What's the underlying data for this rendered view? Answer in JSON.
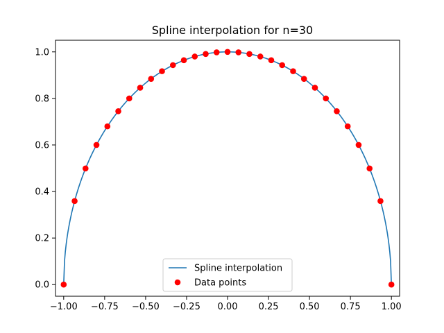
{
  "chart_data": {
    "type": "line",
    "title": "Spline interpolation for n=30",
    "xlabel": "",
    "ylabel": "",
    "xlim": [
      -1.05,
      1.05
    ],
    "ylim": [
      -0.05,
      1.05
    ],
    "grid": false,
    "legend_position": "lower center",
    "x_ticks": [
      -1.0,
      -0.75,
      -0.5,
      -0.25,
      0.0,
      0.25,
      0.5,
      0.75,
      1.0
    ],
    "x_tick_labels": [
      "−1.00",
      "−0.75",
      "−0.50",
      "−0.25",
      "0.00",
      "0.25",
      "0.50",
      "0.75",
      "1.00"
    ],
    "y_ticks": [
      0.0,
      0.2,
      0.4,
      0.6,
      0.8,
      1.0
    ],
    "y_tick_labels": [
      "0.0",
      "0.2",
      "0.4",
      "0.6",
      "0.8",
      "1.0"
    ],
    "series": [
      {
        "name": "Spline interpolation",
        "kind": "line",
        "color": "#1f77b4",
        "function": "sqrt(1 - x^2)"
      },
      {
        "name": "Data points",
        "kind": "scatter",
        "color": "#ff0000",
        "x": [
          -1.0,
          -0.9333,
          -0.8667,
          -0.8,
          -0.7333,
          -0.6667,
          -0.6,
          -0.5333,
          -0.4667,
          -0.4,
          -0.3333,
          -0.2667,
          -0.2,
          -0.1333,
          -0.0667,
          0.0,
          0.0667,
          0.1333,
          0.2,
          0.2667,
          0.3333,
          0.4,
          0.4667,
          0.5333,
          0.6,
          0.6667,
          0.7333,
          0.8,
          0.8667,
          0.9333,
          1.0
        ],
        "y": [
          0.0,
          0.359,
          0.499,
          0.6,
          0.68,
          0.745,
          0.8,
          0.846,
          0.884,
          0.917,
          0.943,
          0.964,
          0.98,
          0.991,
          0.998,
          1.0,
          0.998,
          0.991,
          0.98,
          0.964,
          0.943,
          0.917,
          0.884,
          0.846,
          0.8,
          0.745,
          0.68,
          0.6,
          0.499,
          0.359,
          0.0
        ]
      }
    ]
  }
}
